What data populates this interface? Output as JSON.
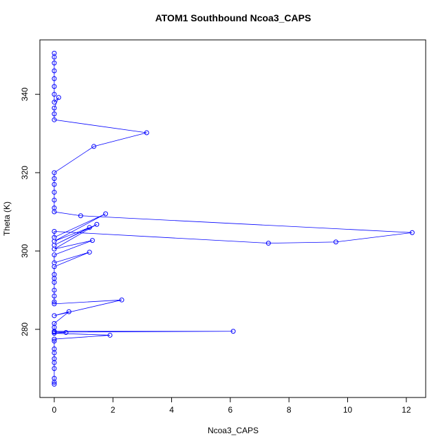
{
  "chart_data": {
    "type": "line",
    "title": "ATOM1 Southbound Ncoa3_CAPS",
    "x_label": "Ncoa3_CAPS",
    "y_label": "Theta (K)",
    "series": [
      {
        "name": "Ncoa3_CAPS",
        "color": "#0000ff",
        "markers": true,
        "x": [
          0,
          0,
          0,
          0,
          0,
          0,
          0,
          0,
          0,
          0,
          1.9,
          0,
          0.4,
          0,
          6.1,
          0,
          0,
          0,
          0.5,
          0,
          2.3,
          0,
          0,
          0,
          0,
          0,
          0,
          0,
          0,
          1.2,
          0,
          0,
          1.3,
          0,
          1.45,
          0,
          1.2,
          0,
          1.75,
          0,
          0,
          7.3,
          9.6,
          12.2,
          0.9,
          0,
          0,
          0,
          0,
          0,
          0,
          0,
          1.35,
          3.15,
          0,
          0,
          0,
          0.15,
          0,
          0,
          0,
          0,
          0,
          0,
          0,
          0
        ],
        "values": [
          266,
          266.5,
          267.5,
          270,
          271.5,
          272.5,
          274,
          275,
          277,
          277.5,
          278.5,
          279,
          279.2,
          279.3,
          279.5,
          279.5,
          280.5,
          281.5,
          284.5,
          283.5,
          287.5,
          286.5,
          287,
          288.5,
          290,
          292,
          293,
          294,
          296,
          299.7,
          297,
          299,
          302.7,
          300.5,
          306.8,
          301.5,
          306,
          302.5,
          309.5,
          303.5,
          305,
          302,
          302.3,
          304.7,
          309,
          310,
          311,
          313,
          315,
          317,
          318.5,
          320,
          326.7,
          330.2,
          333.5,
          335,
          336.5,
          339.2,
          338,
          340,
          342,
          344,
          346,
          348,
          349.5,
          350.5
        ]
      }
    ],
    "xlim": [
      -0.49,
      12.66
    ],
    "ylim": [
      262.6,
      353.9
    ],
    "xticks": [
      0,
      2,
      4,
      6,
      8,
      10,
      12
    ],
    "yticks": [
      280,
      300,
      320,
      340
    ]
  }
}
